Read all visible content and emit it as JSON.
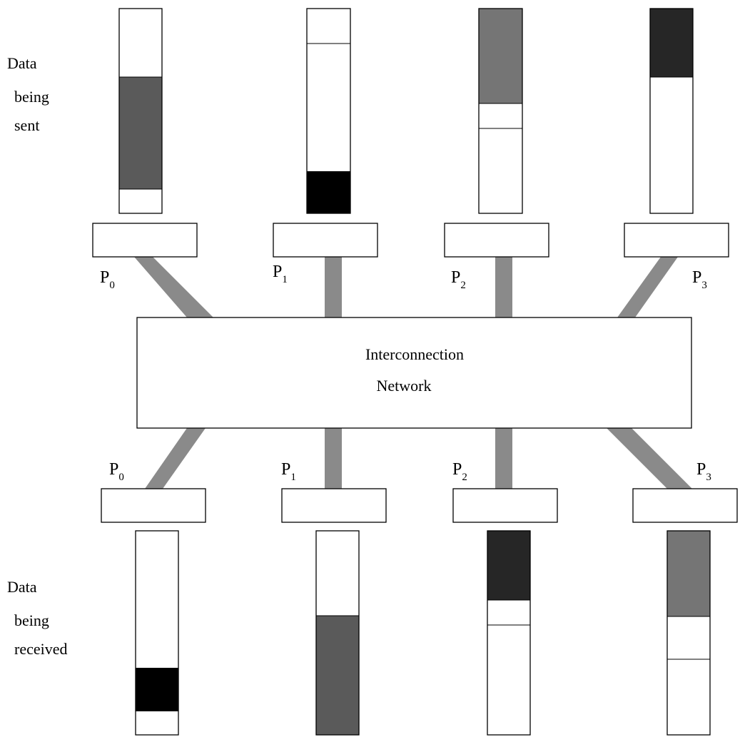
{
  "sent_label": {
    "line1": "Data",
    "line2": "being",
    "line3": "sent"
  },
  "received_label": {
    "line1": "Data",
    "line2": "being",
    "line3": "received"
  },
  "network": {
    "line1": "Interconnection",
    "line2": "Network"
  },
  "processors": [
    {
      "letter": "P",
      "sub": "0"
    },
    {
      "letter": "P",
      "sub": "1"
    },
    {
      "letter": "P",
      "sub": "2"
    },
    {
      "letter": "P",
      "sub": "3"
    }
  ],
  "colors": {
    "link": "#8a8a8a",
    "outline": "#000000",
    "block_dark_gray": "#5a5a5a",
    "block_black": "#000000",
    "block_mid_gray": "#757575",
    "block_near_black": "#262626"
  }
}
